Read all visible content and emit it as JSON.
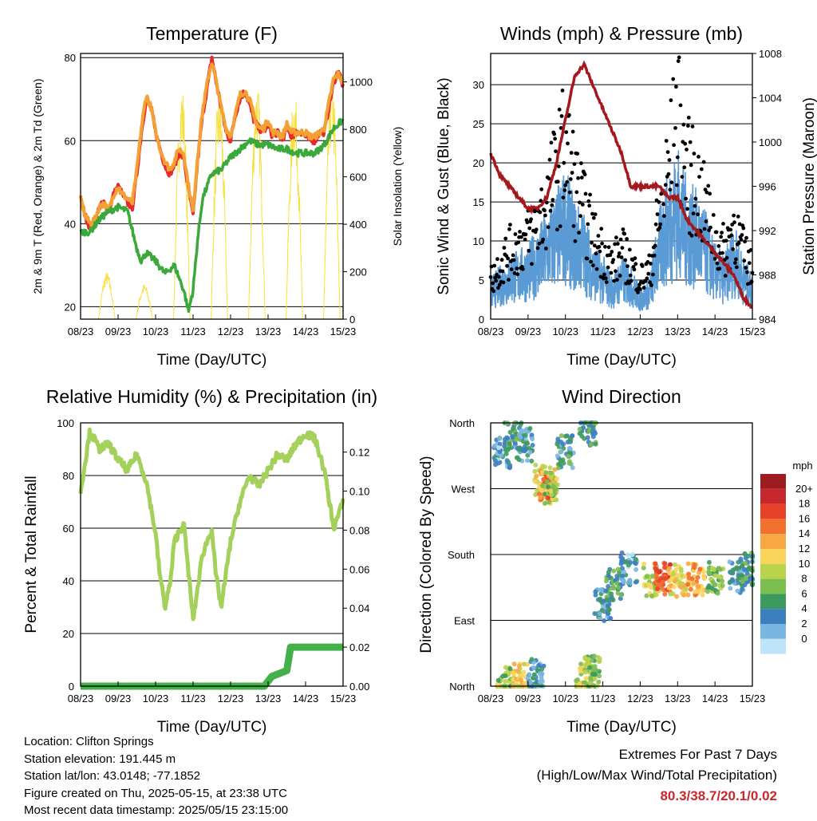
{
  "chart_data": [
    {
      "type": "line",
      "title": "Temperature (F)",
      "xlabel": "Time (Day/UTC)",
      "ylabel": "2m & 9m T (Red, Orange) & 2m Td (Green)",
      "ylabel_right": "Solar Insolation (Yellow)",
      "x_ticks": [
        "08/23",
        "09/23",
        "10/23",
        "11/23",
        "12/23",
        "13/23",
        "14/23",
        "15/23"
      ],
      "ylim": [
        17,
        81
      ],
      "yticks": [
        20,
        40,
        60,
        80
      ],
      "ylim_right": [
        0,
        1120
      ],
      "yticks_right": [
        0,
        200,
        400,
        600,
        800,
        1000
      ],
      "grid": "horizontal",
      "series": [
        {
          "color": "#e8282d",
          "axis": "left",
          "x": [
            0,
            0.12,
            0.25,
            0.38,
            0.5,
            0.62,
            0.75,
            0.88,
            1.0,
            1.12,
            1.25,
            1.38,
            1.5,
            1.62,
            1.75,
            1.88,
            2.0,
            2.12,
            2.25,
            2.38,
            2.5,
            2.62,
            2.75,
            2.88,
            3.0,
            3.12,
            3.25,
            3.38,
            3.5,
            3.62,
            3.75,
            3.88,
            4.0,
            4.12,
            4.25,
            4.38,
            4.5,
            4.62,
            4.75,
            4.88,
            5.0,
            5.12,
            5.25,
            5.38,
            5.5,
            5.62,
            5.75,
            5.88,
            6.0,
            6.12,
            6.25,
            6.38,
            6.5,
            6.62,
            6.75,
            6.88,
            7.0
          ],
          "y": [
            46,
            42,
            39,
            40,
            44,
            45,
            43,
            47,
            49,
            47,
            45,
            44,
            52,
            62,
            70,
            68,
            62,
            58,
            54,
            52,
            54,
            57,
            56,
            48,
            42,
            55,
            66,
            73,
            80,
            74,
            68,
            62,
            60,
            66,
            70,
            72,
            69,
            65,
            63,
            62,
            64,
            61,
            62,
            60,
            63,
            61,
            62,
            62,
            61,
            60,
            60,
            62,
            62,
            68,
            74,
            77,
            73
          ]
        },
        {
          "color": "#f5a033",
          "axis": "left",
          "x": [
            0,
            0.12,
            0.25,
            0.38,
            0.5,
            0.62,
            0.75,
            0.88,
            1.0,
            1.12,
            1.25,
            1.38,
            1.5,
            1.62,
            1.75,
            1.88,
            2.0,
            2.12,
            2.25,
            2.38,
            2.5,
            2.62,
            2.75,
            2.88,
            3.0,
            3.12,
            3.25,
            3.38,
            3.5,
            3.62,
            3.75,
            3.88,
            4.0,
            4.12,
            4.25,
            4.38,
            4.5,
            4.62,
            4.75,
            4.88,
            5.0,
            5.12,
            5.25,
            5.38,
            5.5,
            5.62,
            5.75,
            5.88,
            6.0,
            6.12,
            6.25,
            6.38,
            6.5,
            6.62,
            6.75,
            6.88,
            7.0
          ],
          "y": [
            46,
            42,
            40,
            41,
            44,
            45,
            43,
            47,
            49,
            47,
            46,
            45,
            53,
            63,
            71,
            68,
            62,
            58,
            55,
            53,
            55,
            58,
            57,
            49,
            43,
            56,
            67,
            74,
            79,
            74,
            68,
            63,
            61,
            66,
            71,
            72,
            70,
            66,
            63,
            63,
            65,
            62,
            62,
            61,
            64,
            62,
            62,
            62,
            62,
            61,
            61,
            62,
            63,
            69,
            75,
            76,
            74
          ]
        },
        {
          "color": "#3aa83a",
          "axis": "left",
          "x": [
            0,
            0.25,
            0.5,
            0.75,
            1.0,
            1.25,
            1.5,
            1.62,
            1.75,
            2.0,
            2.25,
            2.5,
            2.75,
            2.88,
            3.0,
            3.12,
            3.25,
            3.5,
            3.75,
            4.0,
            4.25,
            4.5,
            4.75,
            5.0,
            5.25,
            5.5,
            5.75,
            6.0,
            6.25,
            6.5,
            6.75,
            7.0
          ],
          "y": [
            38,
            38,
            41,
            43,
            44,
            43,
            34,
            31,
            33,
            31,
            28,
            30,
            24,
            19,
            24,
            36,
            46,
            52,
            53,
            56,
            58,
            60,
            59,
            59,
            58,
            58,
            57,
            57,
            57,
            59,
            63,
            65
          ]
        }
      ],
      "insolation": {
        "color": "#f7df3c",
        "axis": "right",
        "peak_days": [
          0.7,
          1.7,
          2.7,
          3.7,
          4.7,
          5.7,
          6.7
        ],
        "peak_values": [
          200,
          150,
          1000,
          980,
          1020,
          980,
          1040
        ]
      }
    },
    {
      "type": "scatter",
      "title": "Winds (mph) & Pressure (mb)",
      "xlabel": "Time (Day/UTC)",
      "ylabel": "Sonic Wind & Gust (Blue, Black)",
      "ylabel_right": "Station Pressure (Maroon)",
      "x_ticks": [
        "08/23",
        "09/23",
        "10/23",
        "11/23",
        "12/23",
        "13/23",
        "14/23",
        "15/23"
      ],
      "ylim": [
        0,
        34
      ],
      "yticks": [
        0,
        5,
        10,
        15,
        20,
        25,
        30
      ],
      "ylim_right": [
        984,
        1008
      ],
      "yticks_right": [
        984,
        988,
        992,
        996,
        1000,
        1004,
        1008
      ],
      "grid": "horizontal",
      "series": [
        {
          "name_color": "blue",
          "color": "#5b9bd5",
          "x": [
            0,
            0.5,
            1.0,
            1.5,
            1.75,
            2.0,
            2.25,
            2.5,
            2.75,
            3.0,
            3.25,
            3.5,
            3.75,
            4.0,
            4.25,
            4.5,
            4.75,
            5.0,
            5.25,
            5.5,
            5.75,
            6.0,
            6.25,
            6.5,
            6.75,
            7.0
          ],
          "y": [
            4,
            6,
            7,
            10,
            12,
            14,
            11,
            10,
            7,
            6,
            4,
            6,
            5,
            3,
            4,
            10,
            14,
            16,
            13,
            12,
            10,
            7,
            6,
            9,
            6,
            4
          ]
        },
        {
          "name_color": "black",
          "color": "#000000",
          "x": [
            0,
            0.5,
            1.0,
            1.5,
            1.75,
            2.0,
            2.25,
            2.5,
            2.75,
            3.0,
            3.25,
            3.5,
            3.75,
            4.0,
            4.25,
            4.5,
            4.75,
            5.0,
            5.25,
            5.5,
            5.75,
            6.0,
            6.25,
            6.5,
            6.75,
            7.0
          ],
          "y": [
            6,
            10,
            12,
            17,
            22,
            26,
            20,
            16,
            12,
            10,
            8,
            10,
            8,
            6,
            7,
            15,
            22,
            30,
            22,
            20,
            16,
            12,
            10,
            14,
            10,
            7
          ]
        },
        {
          "name_color": "maroon",
          "color": "#a3191e",
          "axis": "right",
          "x": [
            0,
            0.25,
            0.5,
            0.75,
            1.0,
            1.25,
            1.5,
            1.75,
            2.0,
            2.25,
            2.5,
            2.75,
            3.0,
            3.25,
            3.5,
            3.75,
            4.0,
            4.25,
            4.5,
            4.75,
            5.0,
            5.25,
            5.5,
            5.75,
            6.0,
            6.25,
            6.5,
            6.75,
            7.0
          ],
          "y": [
            999,
            997,
            996,
            995,
            994,
            994,
            995,
            998,
            1002,
            1006,
            1007,
            1005,
            1003,
            1001,
            999,
            996,
            996,
            996,
            996,
            995,
            995,
            993,
            992,
            991,
            990,
            989,
            988,
            986,
            985
          ]
        }
      ]
    },
    {
      "type": "line",
      "title": "Relative Humidity (%) & Precipitation (in)",
      "xlabel": "Time (Day/UTC)",
      "ylabel": "Percent & Total Rainfall",
      "x_ticks": [
        "08/23",
        "09/23",
        "10/23",
        "11/23",
        "12/23",
        "13/23",
        "14/23",
        "15/23"
      ],
      "ylim": [
        0,
        100
      ],
      "yticks": [
        0,
        20,
        40,
        60,
        80,
        100
      ],
      "ylim_right": [
        0,
        0.135
      ],
      "yticks_right": [
        "0.00",
        "0.02",
        "0.04",
        "0.06",
        "0.08",
        "0.10",
        "0.12"
      ],
      "grid": "horizontal",
      "series": [
        {
          "color": "#a3d15c",
          "axis": "left",
          "x": [
            0,
            0.12,
            0.25,
            0.5,
            0.75,
            1.0,
            1.25,
            1.5,
            1.75,
            2.0,
            2.1,
            2.25,
            2.4,
            2.5,
            2.75,
            2.9,
            3.0,
            3.25,
            3.5,
            3.6,
            3.75,
            4.0,
            4.25,
            4.5,
            4.75,
            5.0,
            5.25,
            5.5,
            5.75,
            6.0,
            6.25,
            6.5,
            6.75,
            7.0
          ],
          "y": [
            74,
            85,
            97,
            90,
            92,
            86,
            82,
            88,
            78,
            58,
            44,
            30,
            40,
            55,
            62,
            40,
            25,
            50,
            60,
            43,
            30,
            55,
            70,
            80,
            76,
            82,
            88,
            86,
            92,
            96,
            94,
            82,
            60,
            70
          ]
        },
        {
          "color": "#44b04a",
          "axis": "right",
          "x": [
            0,
            4.9,
            5.1,
            5.5,
            5.6,
            7.0
          ],
          "y": [
            0,
            0,
            0.005,
            0.008,
            0.02,
            0.02
          ]
        }
      ]
    },
    {
      "type": "scatter",
      "title": "Wind Direction",
      "xlabel": "Time (Day/UTC)",
      "ylabel": "Direction (Colored By Speed)",
      "x_ticks": [
        "08/23",
        "09/23",
        "10/23",
        "11/23",
        "12/23",
        "13/23",
        "14/23",
        "15/23"
      ],
      "y_categories": [
        "North",
        "East",
        "South",
        "West",
        "North"
      ],
      "ylim": [
        0,
        360
      ],
      "grid": "horizontal",
      "colorbar": {
        "title": "mph",
        "labels": [
          "20+",
          "18",
          "16",
          "14",
          "12",
          "10",
          "8",
          "6",
          "4",
          "2",
          "0"
        ],
        "colors": [
          "#9e1b1f",
          "#c7282d",
          "#e8412a",
          "#f2702e",
          "#f8a843",
          "#fbd45a",
          "#b9d34c",
          "#7cbd52",
          "#3d9a5e",
          "#3c7fbf",
          "#7bb6e3",
          "#bfe3f7"
        ]
      },
      "clusters": [
        {
          "x": 0.3,
          "y": 320,
          "speed": 3
        },
        {
          "x": 0.6,
          "y": 345,
          "speed": 6
        },
        {
          "x": 0.9,
          "y": 330,
          "speed": 4
        },
        {
          "x": 1.4,
          "y": 280,
          "speed": 12
        },
        {
          "x": 1.5,
          "y": 275,
          "speed": 16
        },
        {
          "x": 1.6,
          "y": 270,
          "speed": 9
        },
        {
          "x": 2.0,
          "y": 320,
          "speed": 5
        },
        {
          "x": 2.6,
          "y": 352,
          "speed": 6
        },
        {
          "x": 0.4,
          "y": 5,
          "speed": 9
        },
        {
          "x": 0.8,
          "y": 8,
          "speed": 12
        },
        {
          "x": 1.2,
          "y": 15,
          "speed": 4
        },
        {
          "x": 2.5,
          "y": 10,
          "speed": 10
        },
        {
          "x": 2.7,
          "y": 20,
          "speed": 8
        },
        {
          "x": 3.0,
          "y": 110,
          "speed": 4
        },
        {
          "x": 3.3,
          "y": 140,
          "speed": 6
        },
        {
          "x": 3.7,
          "y": 160,
          "speed": 3
        },
        {
          "x": 4.3,
          "y": 145,
          "speed": 10
        },
        {
          "x": 4.6,
          "y": 148,
          "speed": 17
        },
        {
          "x": 5.0,
          "y": 145,
          "speed": 12
        },
        {
          "x": 5.5,
          "y": 146,
          "speed": 14
        },
        {
          "x": 6.0,
          "y": 148,
          "speed": 8
        },
        {
          "x": 6.6,
          "y": 150,
          "speed": 4
        },
        {
          "x": 6.9,
          "y": 160,
          "speed": 6
        }
      ]
    }
  ],
  "station_info": {
    "location": "Location: Clifton Springs",
    "elevation": "Station elevation: 191.445 m",
    "latlon": "Station lat/lon: 43.0148; -77.1852",
    "created": "Figure created on Thu, 2025-05-15, at 23:38 UTC",
    "recent": "Most recent data timestamp: 2025/05/15 23:15:00"
  },
  "extremes": {
    "line1": "Extremes For Past 7 Days",
    "line2": "(High/Low/Max Wind/Total Precipitation)",
    "values": "80.3/38.7/20.1/0.02"
  }
}
